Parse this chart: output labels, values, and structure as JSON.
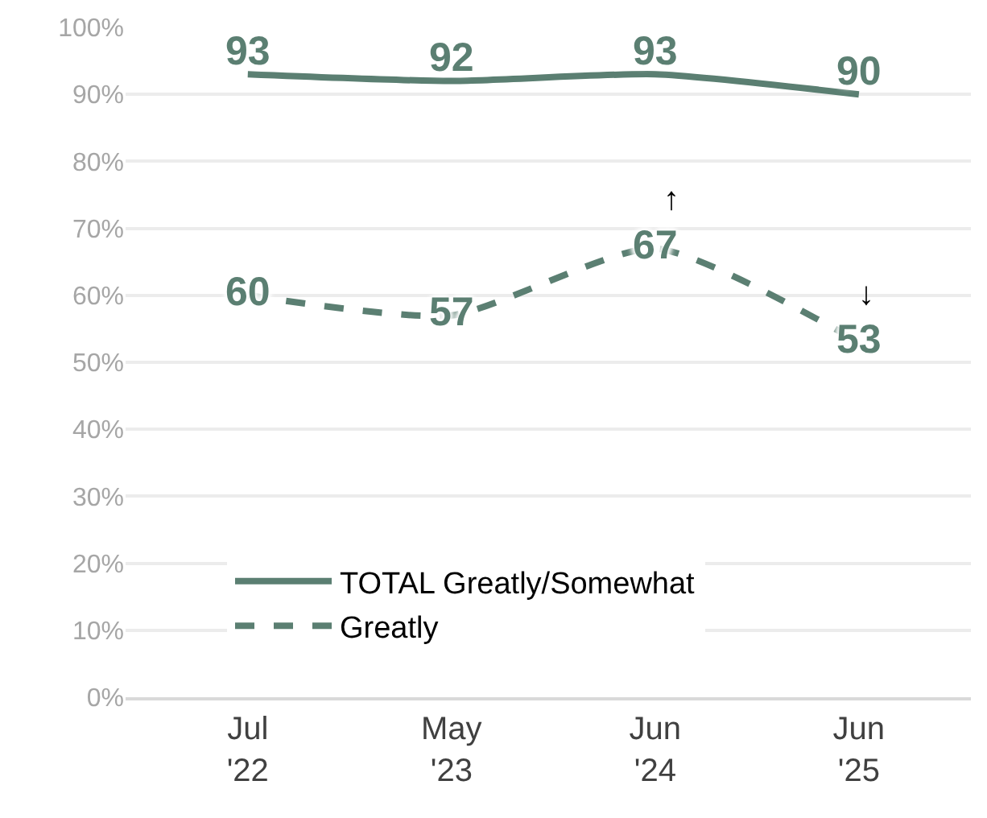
{
  "chart_data": {
    "type": "line",
    "categories": [
      "Jul\n'22",
      "May\n'23",
      "Jun\n'24",
      "Jun\n'25"
    ],
    "series": [
      {
        "name": "TOTAL Greatly/Somewhat",
        "color": "#5b7f72",
        "values": [
          93,
          92,
          93,
          90
        ],
        "line_style": "solid"
      },
      {
        "name": "Greatly",
        "color": "#5b7f72",
        "values": [
          60,
          57,
          67,
          53
        ],
        "line_style": "dashed"
      }
    ],
    "ylim": [
      0,
      100
    ],
    "yticks": [
      {
        "value": 0,
        "label": "0%"
      },
      {
        "value": 10,
        "label": "10%"
      },
      {
        "value": 20,
        "label": "20%"
      },
      {
        "value": 30,
        "label": "30%"
      },
      {
        "value": 40,
        "label": "40%"
      },
      {
        "value": 50,
        "label": "50%"
      },
      {
        "value": 60,
        "label": "60%"
      },
      {
        "value": 70,
        "label": "70%"
      },
      {
        "value": 80,
        "label": "80%"
      },
      {
        "value": 90,
        "label": "90%"
      },
      {
        "value": 100,
        "label": "100%"
      }
    ],
    "grid": "y",
    "legend": "bottom left",
    "marker": "none",
    "data_labels": true,
    "annotations": [
      "↑",
      "↓"
    ]
  }
}
